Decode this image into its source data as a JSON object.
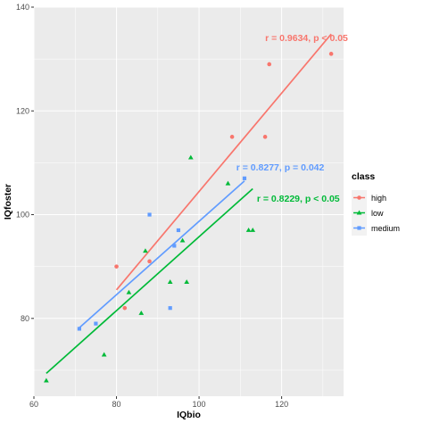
{
  "chart_data": {
    "type": "scatter",
    "title": "",
    "xlabel": "IQbio",
    "ylabel": "IQfoster",
    "xlim": [
      60,
      135
    ],
    "ylim": [
      65,
      140
    ],
    "x_ticks": [
      60,
      80,
      100,
      120
    ],
    "y_ticks": [
      80,
      100,
      120,
      140
    ],
    "grid": true,
    "legend_position": "right",
    "legend_title": "class",
    "colors": {
      "high": "#F8766D",
      "low": "#00BA38",
      "medium": "#619CFF"
    },
    "series": [
      {
        "name": "high",
        "marker": "circle",
        "x": [
          80,
          82,
          88,
          108,
          116,
          117,
          132
        ],
        "y": [
          90,
          82,
          91,
          115,
          115,
          129,
          131
        ],
        "fit": {
          "x": [
            80,
            132
          ],
          "y": [
            85.5,
            134.8
          ]
        }
      },
      {
        "name": "low",
        "marker": "triangle",
        "x": [
          63,
          77,
          83,
          86,
          87,
          93,
          96,
          97,
          98,
          107,
          112,
          113
        ],
        "y": [
          68,
          73,
          85,
          81,
          93,
          87,
          95,
          87,
          111,
          106,
          97,
          97
        ],
        "fit": {
          "x": [
            63,
            113
          ],
          "y": [
            69.4,
            105
          ]
        }
      },
      {
        "name": "medium",
        "marker": "square",
        "x": [
          71,
          75,
          88,
          93,
          94,
          95,
          111
        ],
        "y": [
          78,
          79,
          100,
          82,
          94,
          97,
          107
        ],
        "fit": {
          "x": [
            71,
            111
          ],
          "y": [
            78.2,
            106.5
          ]
        }
      }
    ],
    "annotations": [
      {
        "series": "high",
        "text": "r = 0.9634, p < 0.05",
        "x": 116,
        "y": 133.5
      },
      {
        "series": "medium",
        "text": "r = 0.8277, p =  0.042",
        "x": 109,
        "y": 108.5
      },
      {
        "series": "low",
        "text": "r = 0.8229, p < 0.05",
        "x": 114,
        "y": 102.5
      }
    ]
  }
}
